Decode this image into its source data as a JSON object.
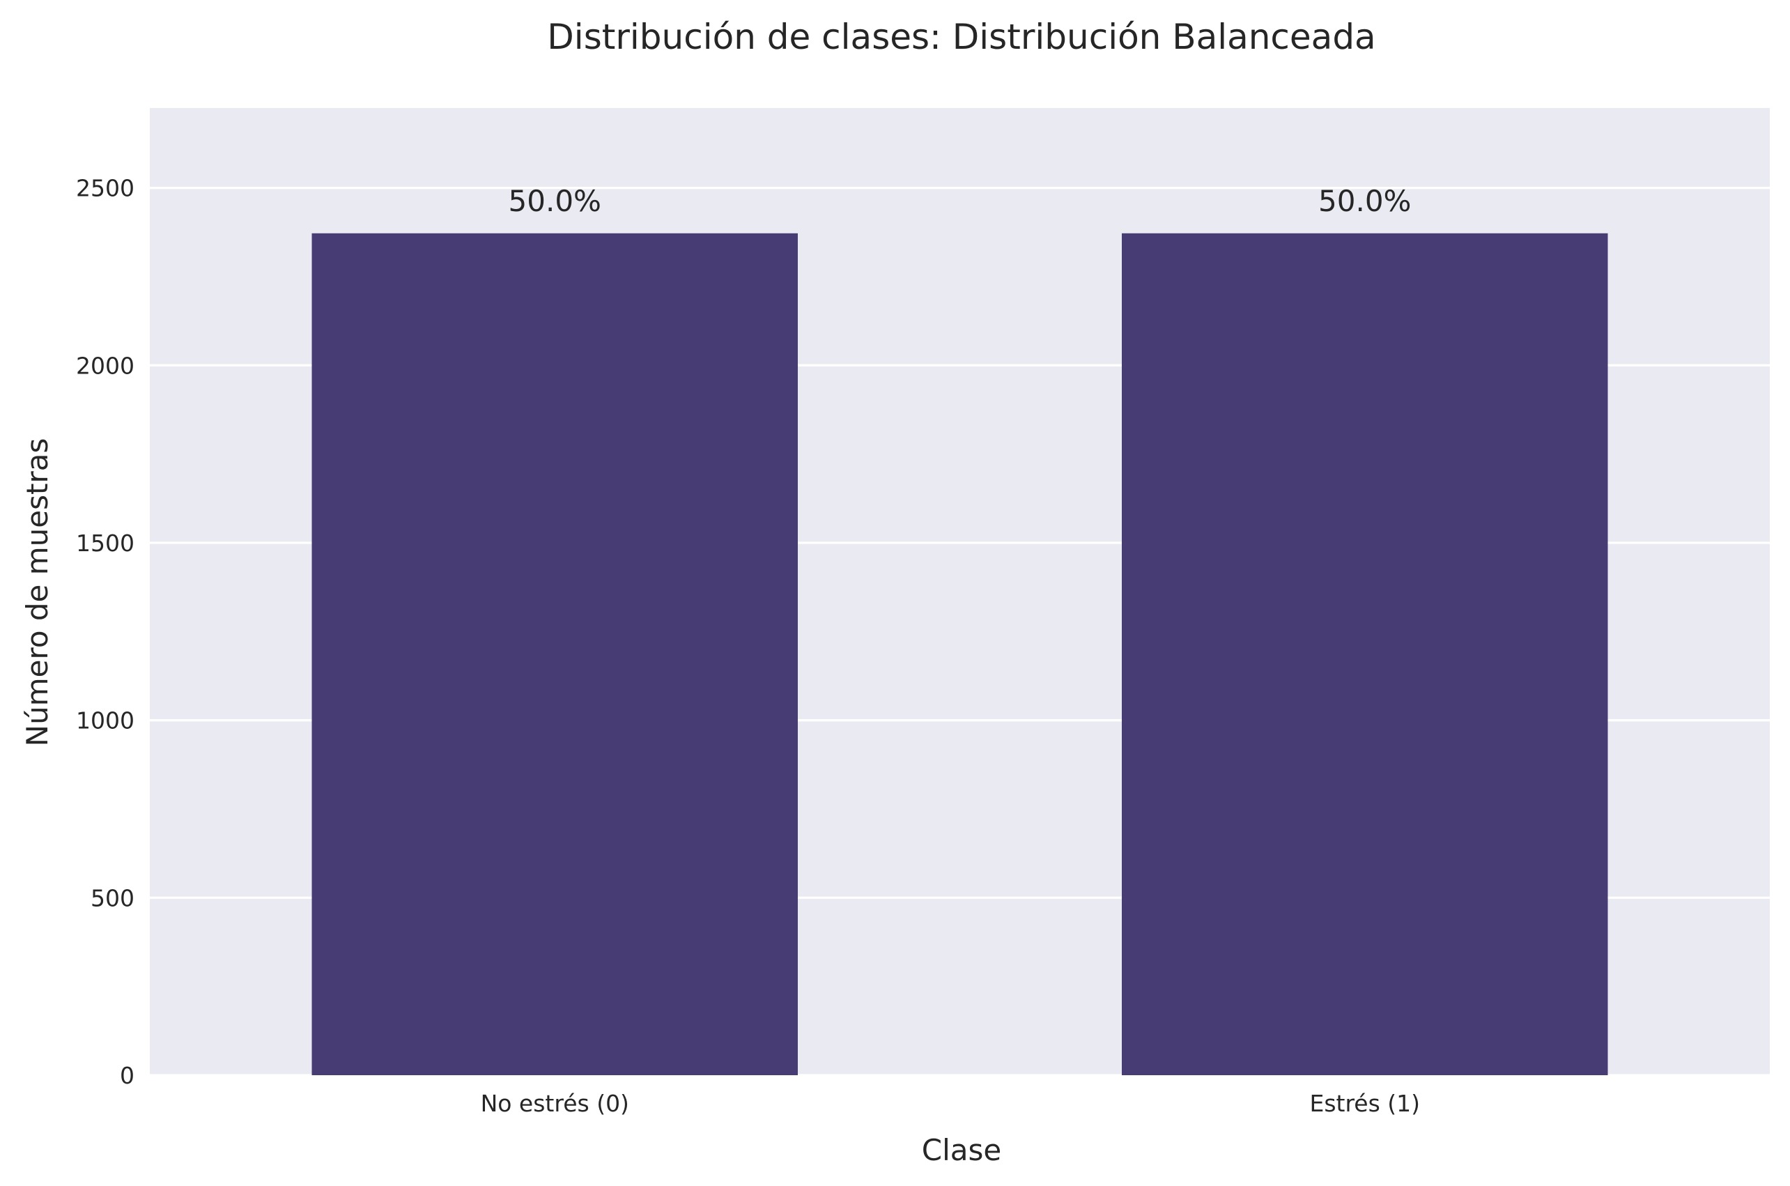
{
  "chart_data": {
    "type": "bar",
    "title": "Distribución de clases: Distribución Balanceada",
    "xlabel": "Clase",
    "ylabel": "Número de muestras",
    "categories": [
      "No estrés (0)",
      "Estrés (1)"
    ],
    "values": [
      2372,
      2372
    ],
    "data_labels": [
      "50.0%",
      "50.0%"
    ],
    "ylim": [
      0,
      2725
    ],
    "yticks": [
      0,
      500,
      1000,
      1500,
      2000,
      2500
    ],
    "grid": true,
    "legend": "none",
    "colors": {
      "bar": "#483c74",
      "plot_background": "#eaeaf2",
      "grid": "#ffffff",
      "text": "#262626"
    }
  }
}
